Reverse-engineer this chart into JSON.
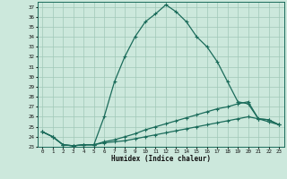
{
  "xlabel": "Humidex (Indice chaleur)",
  "bg_color": "#cce8dc",
  "grid_color": "#a0c8b8",
  "line_color": "#1a6b5a",
  "xlim": [
    -0.5,
    23.5
  ],
  "ylim": [
    23.0,
    37.5
  ],
  "yticks": [
    23,
    24,
    25,
    26,
    27,
    28,
    29,
    30,
    31,
    32,
    33,
    34,
    35,
    36,
    37
  ],
  "xticks": [
    0,
    1,
    2,
    3,
    4,
    5,
    6,
    7,
    8,
    9,
    10,
    11,
    12,
    13,
    14,
    15,
    16,
    17,
    18,
    19,
    20,
    21,
    22,
    23
  ],
  "line1": [
    24.5,
    24.0,
    23.2,
    23.1,
    23.2,
    23.2,
    26.0,
    29.5,
    32.0,
    34.0,
    35.5,
    36.3,
    37.2,
    36.5,
    35.5,
    34.0,
    33.0,
    31.5,
    29.5,
    27.5,
    27.3,
    25.8,
    25.7,
    25.2
  ],
  "line2": [
    24.5,
    24.0,
    23.2,
    23.1,
    23.2,
    23.2,
    23.5,
    23.7,
    24.0,
    24.3,
    24.7,
    25.0,
    25.3,
    25.6,
    25.9,
    26.2,
    26.5,
    26.8,
    27.0,
    27.3,
    27.5,
    25.8,
    25.7,
    25.2
  ],
  "line3": [
    24.5,
    24.0,
    23.2,
    23.1,
    23.2,
    23.2,
    23.4,
    23.5,
    23.6,
    23.8,
    24.0,
    24.2,
    24.4,
    24.6,
    24.8,
    25.0,
    25.2,
    25.4,
    25.6,
    25.8,
    26.0,
    25.8,
    25.5,
    25.2
  ]
}
